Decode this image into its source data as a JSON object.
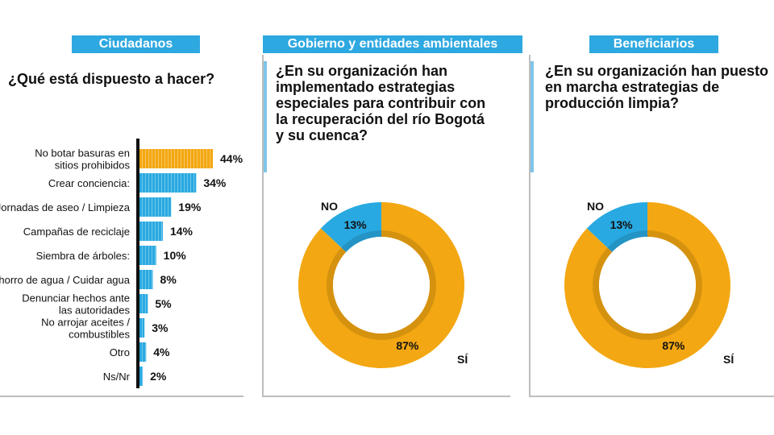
{
  "panels": [
    {
      "title": "Ciudadanos",
      "question": [
        "¿Qué está dispuesto a hacer?"
      ]
    },
    {
      "title": "Gobierno y entidades ambientales",
      "question": [
        "¿En su organización han",
        "implementado estrategias",
        "especiales para contribuir con",
        "la recuperación del río Bogotá",
        "y su cuenca?"
      ]
    },
    {
      "title": "Beneficiarios",
      "question": [
        "¿En su organización han puesto",
        "en marcha estrategias de",
        "producción limpia?"
      ]
    }
  ],
  "colors": {
    "orange": "#f3a712",
    "blue": "#29a9e1",
    "banner": "#2ea8e0"
  },
  "chart_data": [
    {
      "type": "bar",
      "orientation": "horizontal",
      "categories": [
        [
          "No botar basuras en",
          "sitios prohibidos"
        ],
        [
          "Crear conciencia:"
        ],
        [
          "Jornadas de aseo / Limpieza"
        ],
        [
          "Campañas de reciclaje"
        ],
        [
          "Siembra de árboles:"
        ],
        [
          "Ahorro de agua / Cuidar agua"
        ],
        [
          "Denunciar hechos ante",
          "las autoridades"
        ],
        [
          "No arrojar aceites /",
          "combustibles"
        ],
        [
          "Otro"
        ],
        [
          "Ns/Nr"
        ]
      ],
      "values": [
        44,
        34,
        19,
        14,
        10,
        8,
        5,
        3,
        4,
        2
      ],
      "value_labels": [
        "44%",
        "34%",
        "19%",
        "14%",
        "10%",
        "8%",
        "5%",
        "3%",
        "4%",
        "2%"
      ],
      "highlight_color": "#f3a712",
      "bar_color": "#29a9e1"
    },
    {
      "type": "pie",
      "donut": true,
      "slices": [
        {
          "label": "NO",
          "value": 13,
          "value_label": "13%",
          "color": "#29a9e1"
        },
        {
          "label": "SÍ",
          "value": 87,
          "value_label": "87%",
          "color": "#f3a712"
        }
      ]
    },
    {
      "type": "pie",
      "donut": true,
      "slices": [
        {
          "label": "NO",
          "value": 13,
          "value_label": "13%",
          "color": "#29a9e1"
        },
        {
          "label": "SÍ",
          "value": 87,
          "value_label": "87%",
          "color": "#f3a712"
        }
      ]
    }
  ]
}
